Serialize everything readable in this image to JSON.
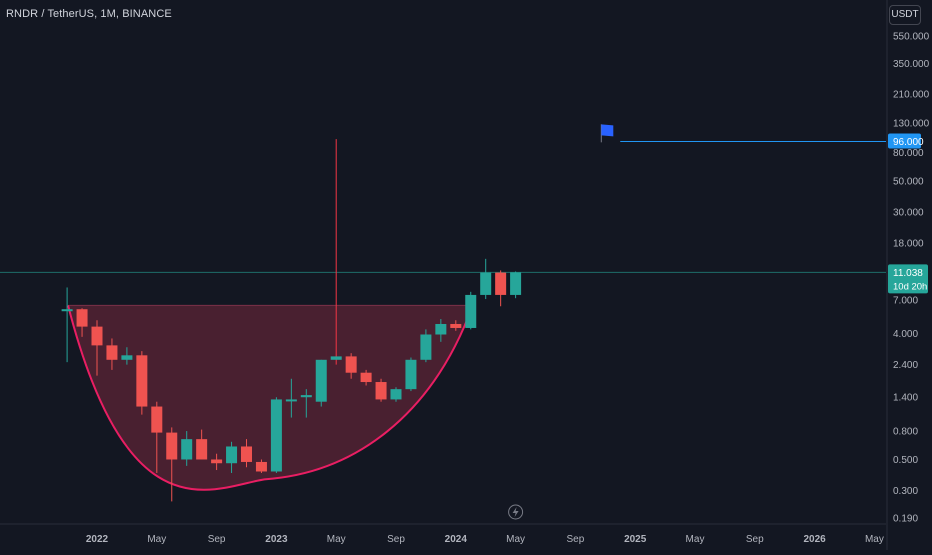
{
  "header": {
    "title": "RNDR / TetherUS, 1M, BINANCE",
    "currency": "USDT"
  },
  "colors": {
    "background": "#131722",
    "text": "#d1d4dc",
    "axis_text": "#b2b5be",
    "grid": "#1e222d",
    "up": "#26a69a",
    "down": "#ef5350",
    "cup_fill": "#5c2436",
    "cup_curve": "#e91e63",
    "target_line": "#2196f3",
    "last_line": "#26a69a",
    "spike": "#f23645"
  },
  "chart_data": {
    "type": "candlestick",
    "title": "RNDR / TetherUS, 1M, BINANCE",
    "y_scale": "log",
    "ylim": [
      0.16,
      1000
    ],
    "y_ticks": [
      0.19,
      0.3,
      0.5,
      0.8,
      1.4,
      2.4,
      4.0,
      7.0,
      11.038,
      18.0,
      30.0,
      50.0,
      80.0,
      96.0,
      130.0,
      210.0,
      350.0,
      550.0
    ],
    "y_tick_labels": [
      "0.190",
      "0.300",
      "0.500",
      "0.800",
      "1.400",
      "2.400",
      "4.000",
      "7.000",
      "11.038",
      "18.000",
      "30.000",
      "50.000",
      "80.000",
      "96.000",
      "130.000",
      "210.000",
      "350.000",
      "550.000"
    ],
    "x_tick_labels": [
      {
        "date": "2022-01",
        "label": "2022",
        "bold": true
      },
      {
        "date": "2022-05",
        "label": "May",
        "bold": false
      },
      {
        "date": "2022-09",
        "label": "Sep",
        "bold": false
      },
      {
        "date": "2023-01",
        "label": "2023",
        "bold": true
      },
      {
        "date": "2023-05",
        "label": "May",
        "bold": false
      },
      {
        "date": "2023-09",
        "label": "Sep",
        "bold": false
      },
      {
        "date": "2024-01",
        "label": "2024",
        "bold": true
      },
      {
        "date": "2024-05",
        "label": "May",
        "bold": false
      },
      {
        "date": "2024-09",
        "label": "Sep",
        "bold": false
      },
      {
        "date": "2025-01",
        "label": "2025",
        "bold": true
      },
      {
        "date": "2025-05",
        "label": "May",
        "bold": false
      },
      {
        "date": "2025-09",
        "label": "Sep",
        "bold": false
      },
      {
        "date": "2026-01",
        "label": "2026",
        "bold": true
      },
      {
        "date": "2026-05",
        "label": "May",
        "bold": false
      }
    ],
    "candles": [
      {
        "date": "2021-11",
        "open": 5.9,
        "high": 8.6,
        "low": 2.5,
        "close": 6.0
      },
      {
        "date": "2021-12",
        "open": 6.0,
        "high": 6.1,
        "low": 3.8,
        "close": 4.5
      },
      {
        "date": "2022-01",
        "open": 4.5,
        "high": 5.0,
        "low": 2.0,
        "close": 3.3
      },
      {
        "date": "2022-02",
        "open": 3.3,
        "high": 3.7,
        "low": 2.2,
        "close": 2.6
      },
      {
        "date": "2022-03",
        "open": 2.6,
        "high": 3.2,
        "low": 2.4,
        "close": 2.8
      },
      {
        "date": "2022-04",
        "open": 2.8,
        "high": 3.0,
        "low": 1.05,
        "close": 1.2
      },
      {
        "date": "2022-05",
        "open": 1.2,
        "high": 1.3,
        "low": 0.4,
        "close": 0.78
      },
      {
        "date": "2022-06",
        "open": 0.78,
        "high": 0.85,
        "low": 0.25,
        "close": 0.5
      },
      {
        "date": "2022-07",
        "open": 0.5,
        "high": 0.8,
        "low": 0.45,
        "close": 0.7
      },
      {
        "date": "2022-08",
        "open": 0.7,
        "high": 0.82,
        "low": 0.5,
        "close": 0.5
      },
      {
        "date": "2022-09",
        "open": 0.5,
        "high": 0.55,
        "low": 0.42,
        "close": 0.47
      },
      {
        "date": "2022-10",
        "open": 0.47,
        "high": 0.67,
        "low": 0.4,
        "close": 0.62
      },
      {
        "date": "2022-11",
        "open": 0.62,
        "high": 0.7,
        "low": 0.44,
        "close": 0.48
      },
      {
        "date": "2022-12",
        "open": 0.48,
        "high": 0.5,
        "low": 0.4,
        "close": 0.41
      },
      {
        "date": "2023-01",
        "open": 0.41,
        "high": 1.4,
        "low": 0.4,
        "close": 1.35
      },
      {
        "date": "2023-02",
        "open": 1.35,
        "high": 1.9,
        "low": 1.0,
        "close": 1.35
      },
      {
        "date": "2023-03",
        "open": 1.4,
        "high": 1.6,
        "low": 1.0,
        "close": 1.45
      },
      {
        "date": "2023-04",
        "open": 1.3,
        "high": 2.6,
        "low": 1.2,
        "close": 2.6
      },
      {
        "date": "2023-05",
        "open": 2.6,
        "high": 100.0,
        "low": 2.4,
        "close": 2.75
      },
      {
        "date": "2023-06",
        "open": 2.75,
        "high": 2.9,
        "low": 1.9,
        "close": 2.1
      },
      {
        "date": "2023-07",
        "open": 2.1,
        "high": 2.2,
        "low": 1.7,
        "close": 1.8
      },
      {
        "date": "2023-08",
        "open": 1.8,
        "high": 1.9,
        "low": 1.3,
        "close": 1.35
      },
      {
        "date": "2023-09",
        "open": 1.35,
        "high": 1.65,
        "low": 1.3,
        "close": 1.6
      },
      {
        "date": "2023-10",
        "open": 1.6,
        "high": 2.7,
        "low": 1.55,
        "close": 2.6
      },
      {
        "date": "2023-11",
        "open": 2.6,
        "high": 4.3,
        "low": 2.5,
        "close": 3.95
      },
      {
        "date": "2023-12",
        "open": 3.95,
        "high": 5.1,
        "low": 3.5,
        "close": 4.7
      },
      {
        "date": "2024-01",
        "open": 4.7,
        "high": 5.0,
        "low": 4.2,
        "close": 4.4
      },
      {
        "date": "2024-02",
        "open": 4.4,
        "high": 8.0,
        "low": 4.3,
        "close": 7.6
      },
      {
        "date": "2024-03",
        "open": 7.6,
        "high": 13.8,
        "low": 7.1,
        "close": 11.0
      },
      {
        "date": "2024-04",
        "open": 11.0,
        "high": 11.4,
        "low": 6.3,
        "close": 7.6
      },
      {
        "date": "2024-05",
        "open": 7.6,
        "high": 11.2,
        "low": 7.2,
        "close": 11.038
      }
    ],
    "annotations": {
      "last_price": {
        "value": 11.038,
        "label": "11.038",
        "countdown": "10d 20h"
      },
      "target": {
        "value": 96.0,
        "label": "96.000",
        "from_date": "2024-12"
      },
      "flag": {
        "date": "2024-11",
        "value": 110.0
      },
      "cup_rim": {
        "value": 6.4,
        "from_date": "2021-12",
        "to_date": "2024-02"
      },
      "cup_bottom": {
        "date": "2022-12",
        "value": 0.36
      },
      "spike": {
        "date": "2023-05",
        "value": 100.0
      }
    }
  }
}
